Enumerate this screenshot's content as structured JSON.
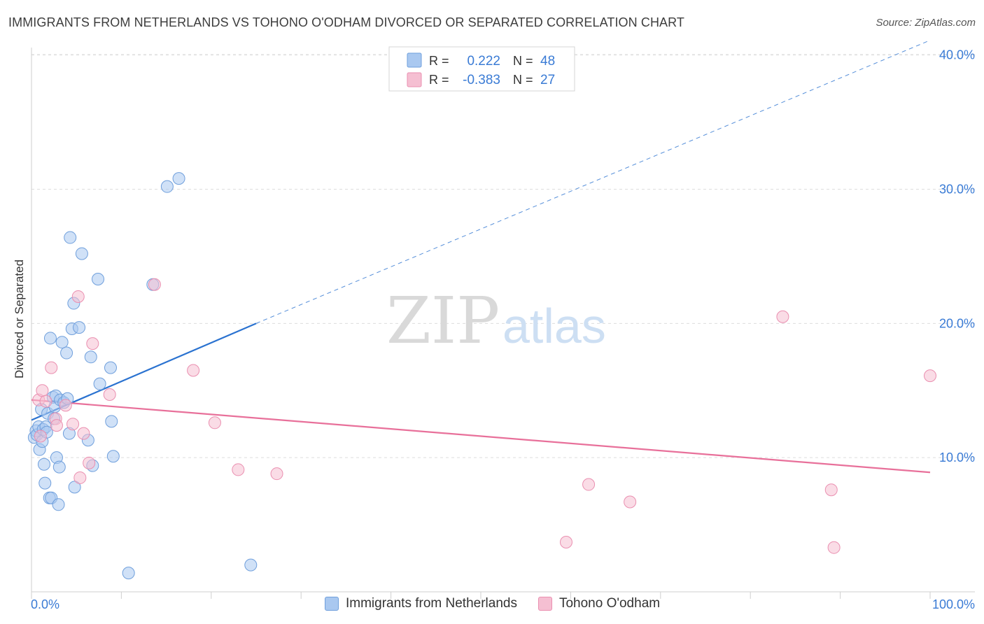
{
  "title": "IMMIGRANTS FROM NETHERLANDS VS TOHONO O'ODHAM DIVORCED OR SEPARATED CORRELATION CHART",
  "source": "Source: ZipAtlas.com",
  "watermark": {
    "zip": "ZIP",
    "atlas": "atlas"
  },
  "colors": {
    "blue_fill": "#a9c8f0",
    "blue_stroke": "#6f9fdc",
    "blue_line": "#2a72d0",
    "pink_fill": "#f5bfd2",
    "pink_stroke": "#ea8fb0",
    "pink_line": "#e8709a",
    "axis_text": "#3a7bd5",
    "grid": "#dddddd"
  },
  "legend_box": {
    "rows": [
      {
        "r_label": "R =",
        "r_value": "0.222",
        "n_label": "N =",
        "n_value": "48"
      },
      {
        "r_label": "R =",
        "r_value": "-0.383",
        "n_label": "N =",
        "n_value": "27"
      }
    ]
  },
  "chart_data": {
    "type": "scatter",
    "title": "IMMIGRANTS FROM NETHERLANDS VS TOHONO O'ODHAM DIVORCED OR SEPARATED CORRELATION CHART",
    "xlabel": "",
    "ylabel": "Divorced or Separated",
    "xlim": [
      0,
      100
    ],
    "ylim": [
      0,
      40
    ],
    "x_tick_labels": [
      "0.0%",
      "100.0%"
    ],
    "y_ticks": [
      10,
      20,
      30,
      40
    ],
    "y_tick_labels": [
      "10.0%",
      "20.0%",
      "30.0%",
      "40.0%"
    ],
    "grid": "horizontal dashed",
    "legend_position": "top-center",
    "series": [
      {
        "name": "Immigrants from Netherlands",
        "color": "#a9c8f0",
        "R": 0.222,
        "N": 48,
        "trend": {
          "x": [
            0,
            25
          ],
          "y": [
            12.8,
            20.0
          ],
          "dashed_extension_to": [
            100,
            41.1
          ]
        },
        "points": [
          [
            0.3,
            11.5
          ],
          [
            0.5,
            12.0
          ],
          [
            0.6,
            11.7
          ],
          [
            0.8,
            12.3
          ],
          [
            0.9,
            10.6
          ],
          [
            1.1,
            13.6
          ],
          [
            1.2,
            11.2
          ],
          [
            1.3,
            12.1
          ],
          [
            1.4,
            9.5
          ],
          [
            1.5,
            8.1
          ],
          [
            1.6,
            12.3
          ],
          [
            1.7,
            11.9
          ],
          [
            1.8,
            13.3
          ],
          [
            2.0,
            7.0
          ],
          [
            2.1,
            18.9
          ],
          [
            2.2,
            7.0
          ],
          [
            2.4,
            14.5
          ],
          [
            2.5,
            12.9
          ],
          [
            2.6,
            13.8
          ],
          [
            2.7,
            14.6
          ],
          [
            2.8,
            10.0
          ],
          [
            3.0,
            6.5
          ],
          [
            3.1,
            9.3
          ],
          [
            3.2,
            14.3
          ],
          [
            3.4,
            18.6
          ],
          [
            3.6,
            14.1
          ],
          [
            3.9,
            17.8
          ],
          [
            4.0,
            14.4
          ],
          [
            4.3,
            26.4
          ],
          [
            4.5,
            19.6
          ],
          [
            4.7,
            21.5
          ],
          [
            4.8,
            7.8
          ],
          [
            5.3,
            19.7
          ],
          [
            5.6,
            25.2
          ],
          [
            6.3,
            11.3
          ],
          [
            6.6,
            17.5
          ],
          [
            6.8,
            9.4
          ],
          [
            7.4,
            23.3
          ],
          [
            7.6,
            15.5
          ],
          [
            8.8,
            16.7
          ],
          [
            8.9,
            12.7
          ],
          [
            9.1,
            10.1
          ],
          [
            10.8,
            1.4
          ],
          [
            13.5,
            22.9
          ],
          [
            15.1,
            30.2
          ],
          [
            16.4,
            30.8
          ],
          [
            24.4,
            2.0
          ],
          [
            4.2,
            11.8
          ]
        ]
      },
      {
        "name": "Tohono O'odham",
        "color": "#f5bfd2",
        "R": -0.383,
        "N": 27,
        "trend": {
          "x": [
            0,
            100
          ],
          "y": [
            14.3,
            8.9
          ]
        },
        "points": [
          [
            0.8,
            14.3
          ],
          [
            1.2,
            15.0
          ],
          [
            1.6,
            14.2
          ],
          [
            2.2,
            16.7
          ],
          [
            2.7,
            12.9
          ],
          [
            2.8,
            12.4
          ],
          [
            3.8,
            13.9
          ],
          [
            4.6,
            12.5
          ],
          [
            5.2,
            22.0
          ],
          [
            5.4,
            8.5
          ],
          [
            5.8,
            11.8
          ],
          [
            6.4,
            9.6
          ],
          [
            6.8,
            18.5
          ],
          [
            8.7,
            14.7
          ],
          [
            13.7,
            22.9
          ],
          [
            18.0,
            16.5
          ],
          [
            20.4,
            12.6
          ],
          [
            23.0,
            9.1
          ],
          [
            27.3,
            8.8
          ],
          [
            59.5,
            3.7
          ],
          [
            62.0,
            8.0
          ],
          [
            66.6,
            6.7
          ],
          [
            83.6,
            20.5
          ],
          [
            89.0,
            7.6
          ],
          [
            89.3,
            3.3
          ],
          [
            100.0,
            16.1
          ],
          [
            1.0,
            11.6
          ]
        ]
      }
    ]
  }
}
